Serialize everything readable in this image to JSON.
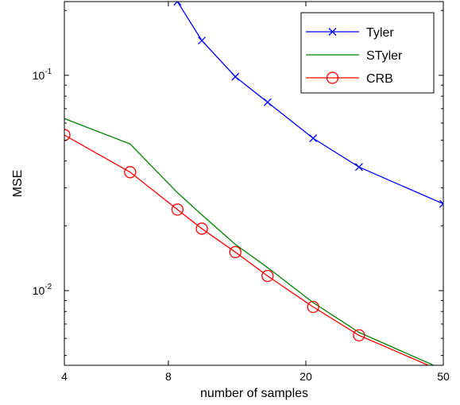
{
  "chart_data": {
    "type": "line",
    "title": "",
    "xlabel": "number of samples",
    "ylabel": "MSE",
    "x_scale": "log",
    "y_scale": "log",
    "xlim": [
      4,
      50
    ],
    "ylim": [
      0.0045,
      0.22
    ],
    "xticks": [
      {
        "value": 4,
        "label": "4"
      },
      {
        "value": 8,
        "label": "8"
      },
      {
        "value": 20,
        "label": "20"
      },
      {
        "value": 50,
        "label": "50"
      }
    ],
    "yticks": [
      {
        "value": 0.01,
        "base": "10",
        "exp": "-2"
      },
      {
        "value": 0.1,
        "base": "10",
        "exp": "-1"
      }
    ],
    "grid": false,
    "legend": {
      "position": "top-right"
    },
    "series": [
      {
        "name": "Tyler",
        "color": "#0000ff",
        "marker": "x",
        "x": [
          8.5,
          10,
          12.5,
          15.5,
          21,
          28.5,
          50
        ],
        "y": [
          0.22,
          0.145,
          0.0985,
          0.075,
          0.051,
          0.0375,
          0.0253
        ]
      },
      {
        "name": "STyler",
        "color": "#008000",
        "marker": "none",
        "x": [
          4,
          6.2,
          8.5,
          10,
          12.5,
          15.5,
          21,
          28.5,
          50
        ],
        "y": [
          0.063,
          0.048,
          0.0285,
          0.0225,
          0.0164,
          0.0128,
          0.0088,
          0.0064,
          0.0043
        ]
      },
      {
        "name": "CRB",
        "color": "#ff0000",
        "marker": "o",
        "x": [
          4,
          6.2,
          8.5,
          10,
          12.5,
          15.5,
          21,
          28.5,
          50
        ],
        "y": [
          0.0528,
          0.0355,
          0.0238,
          0.0194,
          0.0151,
          0.0117,
          0.0084,
          0.0062,
          0.0042
        ]
      }
    ]
  }
}
